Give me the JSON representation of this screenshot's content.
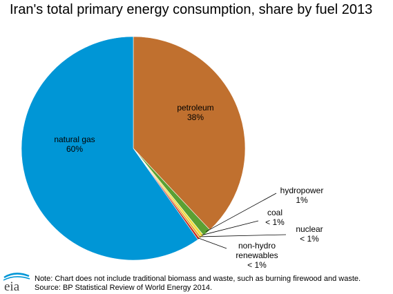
{
  "chart_data": {
    "type": "pie",
    "title": "Iran's total primary energy consumption, share by fuel 2013",
    "slices": [
      {
        "name": "petroleum",
        "value": 38,
        "label_name": "petroleum",
        "label_value": "38%",
        "color": "#C0702F"
      },
      {
        "name": "hydropower",
        "value": 1.2,
        "label_name": "hydropower",
        "label_value": "1%",
        "color": "#5BA033"
      },
      {
        "name": "coal",
        "value": 0.4,
        "label_name": "coal",
        "label_value": "< 1%",
        "color": "#F0DC3C"
      },
      {
        "name": "nuclear",
        "value": 0.3,
        "label_name": "nuclear",
        "label_value": "< 1%",
        "color": "#E8A92E"
      },
      {
        "name": "non-hydro renewables",
        "value": 0.3,
        "label_name": "non-hydro\nrenewables",
        "label_value": "< 1%",
        "color": "#C92A1E"
      },
      {
        "name": "natural gas",
        "value": 59.8,
        "label_name": "natural gas",
        "label_value": "60%",
        "color": "#0096D6"
      }
    ],
    "legend": "none",
    "grid": false
  },
  "footer": {
    "note": "Note: Chart does not include traditional biomass and waste, such as burning firewood and waste.",
    "source": "Source: BP Statistical Review of World Energy 2014.",
    "logo_text": "eia"
  }
}
